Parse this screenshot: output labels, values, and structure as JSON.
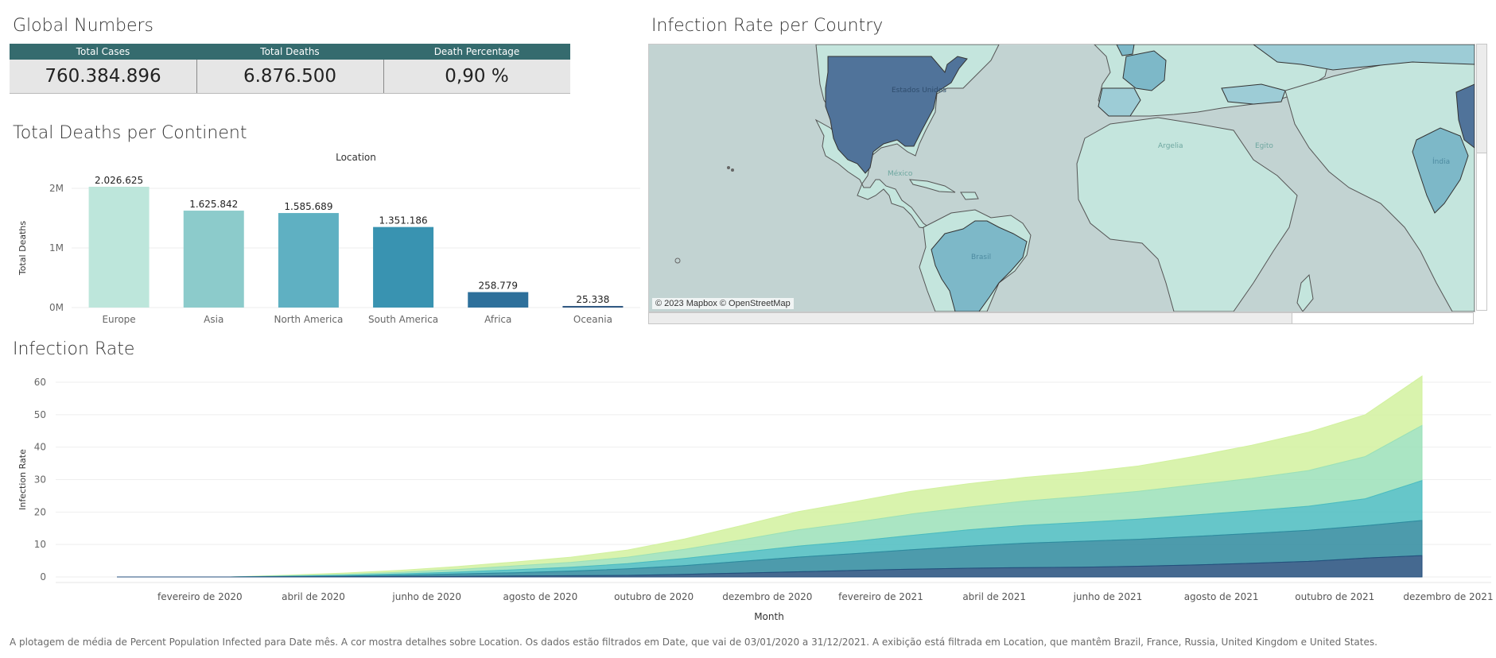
{
  "sections": {
    "global_numbers": "Global Numbers",
    "map_title": "Infection Rate per Country",
    "deaths_title": "Total Deaths per Continent",
    "infection_title": "Infection Rate"
  },
  "kpi": {
    "headers": [
      "Total Cases",
      "Total Deaths",
      "Death Percentage"
    ],
    "values": [
      "760.384.896",
      "6.876.500",
      "0,90 %"
    ],
    "header_color": "#356b6e"
  },
  "map": {
    "credit": "© 2023 Mapbox © OpenStreetMap",
    "highlighted": [
      "United States",
      "Brazil",
      "France",
      "United Kingdom",
      "Russia",
      "India",
      "Turkey",
      "Spain"
    ],
    "labels": [
      "Estados Unidos",
      "México",
      "Brasil",
      "Argelia",
      "Egito",
      "Índia"
    ],
    "colors": {
      "water": "#c2d3d2",
      "land": "#c4e5dd",
      "high": "#50739a",
      "mid": "#7db8c8",
      "low": "#9dccd6"
    }
  },
  "chart_data": [
    {
      "type": "bar",
      "title": "Total Deaths per Continent",
      "header": "Location",
      "ylabel": "Total Deaths",
      "categories": [
        "Europe",
        "Asia",
        "North America",
        "South America",
        "Africa",
        "Oceania"
      ],
      "values": [
        2026625,
        1625842,
        1585689,
        1351186,
        258779,
        25338
      ],
      "data_labels": [
        "2.026.625",
        "1.625.842",
        "1.585.689",
        "1.351.186",
        "258.779",
        "25.338"
      ],
      "yticks": [
        "0M",
        "1M",
        "2M"
      ],
      "ytick_values": [
        0,
        1000000,
        2000000
      ],
      "ylim": [
        0,
        2150000
      ],
      "colors": [
        "#bde6db",
        "#8ccbcb",
        "#5fb0c2",
        "#3993b1",
        "#2e709b",
        "#244f7c"
      ]
    },
    {
      "type": "area",
      "title": "Infection Rate",
      "xlabel": "Month",
      "ylabel": "Infection Rate",
      "x": [
        "2020-01",
        "2020-02",
        "2020-03",
        "2020-04",
        "2020-05",
        "2020-06",
        "2020-07",
        "2020-08",
        "2020-09",
        "2020-10",
        "2020-11",
        "2020-12",
        "2021-01",
        "2021-02",
        "2021-03",
        "2021-04",
        "2021-05",
        "2021-06",
        "2021-07",
        "2021-08",
        "2021-09",
        "2021-10",
        "2021-11",
        "2021-12"
      ],
      "xticks": [
        "fevereiro de 2020",
        "abril de 2020",
        "junho de 2020",
        "agosto de 2020",
        "outubro de 2020",
        "dezembro de 2020",
        "fevereiro de 2021",
        "abril de 2021",
        "junho de 2021",
        "agosto de 2021",
        "outubro de 2021",
        "dezembro de 2021"
      ],
      "yticks": [
        0,
        10,
        20,
        30,
        40,
        50,
        60
      ],
      "ylim": [
        0,
        62
      ],
      "series": [
        {
          "color": "#244f7c",
          "values": [
            0,
            0,
            0,
            0.05,
            0.1,
            0.15,
            0.2,
            0.3,
            0.4,
            0.5,
            0.8,
            1.2,
            1.6,
            2.0,
            2.4,
            2.7,
            2.9,
            3.0,
            3.3,
            3.7,
            4.2,
            4.8,
            5.8,
            6.6
          ]
        },
        {
          "color": "#2e8a9e",
          "values": [
            0,
            0,
            0,
            0.1,
            0.2,
            0.4,
            0.7,
            1.0,
            1.4,
            2.0,
            2.7,
            3.6,
            4.5,
            5.2,
            6.0,
            6.8,
            7.5,
            8.0,
            8.3,
            8.8,
            9.2,
            9.6,
            10.0,
            10.8
          ]
        },
        {
          "color": "#4bbcc0",
          "values": [
            0,
            0,
            0,
            0.1,
            0.2,
            0.4,
            0.6,
            0.9,
            1.2,
            1.6,
            2.2,
            2.8,
            3.4,
            3.8,
            4.4,
            5.0,
            5.5,
            5.8,
            6.2,
            6.6,
            7.0,
            7.4,
            8.3,
            12.3
          ]
        },
        {
          "color": "#9be0b9",
          "values": [
            0,
            0,
            0,
            0.1,
            0.3,
            0.5,
            0.8,
            1.2,
            1.5,
            2.0,
            2.8,
            3.8,
            5.0,
            5.8,
            6.6,
            7.0,
            7.5,
            8.0,
            8.6,
            9.3,
            10.0,
            11.0,
            13.0,
            17.0
          ]
        },
        {
          "color": "#d2f19f",
          "values": [
            0,
            0,
            0,
            0.2,
            0.4,
            0.6,
            0.9,
            1.2,
            1.6,
            2.2,
            3.2,
            4.4,
            5.6,
            6.4,
            7.0,
            7.2,
            7.3,
            7.4,
            7.8,
            8.8,
            10.2,
            11.8,
            12.9,
            15.2
          ]
        }
      ]
    }
  ],
  "footer": "A plotagem de média de Percent Population Infected para Date mês.  A cor mostra detalhes sobre Location. Os dados estão filtrados em Date, que vai de 03/01/2020 a 31/12/2021. A exibição está filtrada em Location, que mantêm Brazil, France, Russia, United Kingdom e United States."
}
